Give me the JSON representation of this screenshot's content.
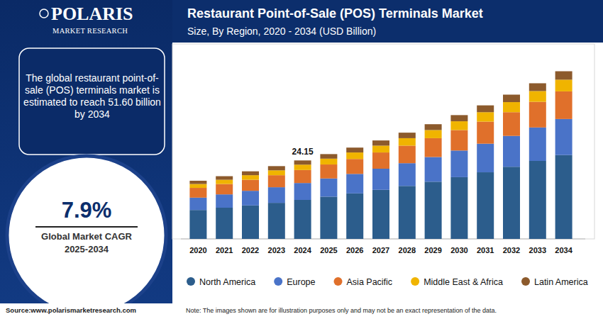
{
  "header": {
    "logo": "POLARIS",
    "logo_subtitle": "MARKET RESEARCH"
  },
  "panel": {
    "summary": "The global restaurant point-of-sale (POS) terminals market is estimated to reach 51.60 billion by 2034",
    "cagr": "7.9%",
    "cagr_label": "Global Market CAGR",
    "cagr_period": "2025-2034"
  },
  "footer": {
    "source": "Source:www.polarismarketresearch.com",
    "note": "Note: The images shown are for illustration purposes only and may not be an exact representation of the data."
  },
  "chart_data": {
    "type": "bar",
    "stacked": true,
    "title": "Restaurant Point-of-Sale (POS) Terminals Market",
    "subtitle": "Size, By Region, 2020 - 2034 (USD Billion)",
    "categories": [
      "2020",
      "2021",
      "2022",
      "2023",
      "2024",
      "2025",
      "2026",
      "2027",
      "2028",
      "2029",
      "2030",
      "2031",
      "2032",
      "2033",
      "2034"
    ],
    "series": [
      {
        "name": "North America",
        "color": "#2c5d8c",
        "values": [
          8.9,
          9.6,
          10.3,
          11.1,
          12.0,
          13.0,
          14.0,
          15.1,
          16.3,
          17.6,
          19.0,
          20.5,
          22.2,
          24.0,
          25.8
        ]
      },
      {
        "name": "Europe",
        "color": "#4a73c8",
        "values": [
          3.8,
          4.1,
          4.5,
          4.8,
          5.2,
          5.6,
          6.0,
          6.5,
          7.0,
          7.6,
          8.2,
          8.8,
          9.5,
          10.3,
          11.1
        ]
      },
      {
        "name": "Asia Pacific",
        "color": "#e0702b",
        "values": [
          3.0,
          3.2,
          3.4,
          3.7,
          4.0,
          4.3,
          4.6,
          5.0,
          5.4,
          5.8,
          6.3,
          6.8,
          7.3,
          7.9,
          8.5
        ]
      },
      {
        "name": "Middle East & Africa",
        "color": "#f0b400",
        "values": [
          1.2,
          1.3,
          1.4,
          1.5,
          1.65,
          1.8,
          2.0,
          2.1,
          2.3,
          2.5,
          2.7,
          2.9,
          3.1,
          3.3,
          3.6
        ]
      },
      {
        "name": "Latin America",
        "color": "#8c5a2c",
        "values": [
          1.0,
          1.1,
          1.2,
          1.3,
          1.3,
          1.4,
          1.5,
          1.6,
          1.7,
          1.8,
          1.9,
          2.1,
          2.3,
          2.4,
          2.6
        ]
      }
    ],
    "ylim": [
      0,
      60
    ],
    "tick_labels": "x",
    "legend": "bottom",
    "annotations": [
      {
        "category": "2024",
        "value": 24.15
      }
    ]
  }
}
